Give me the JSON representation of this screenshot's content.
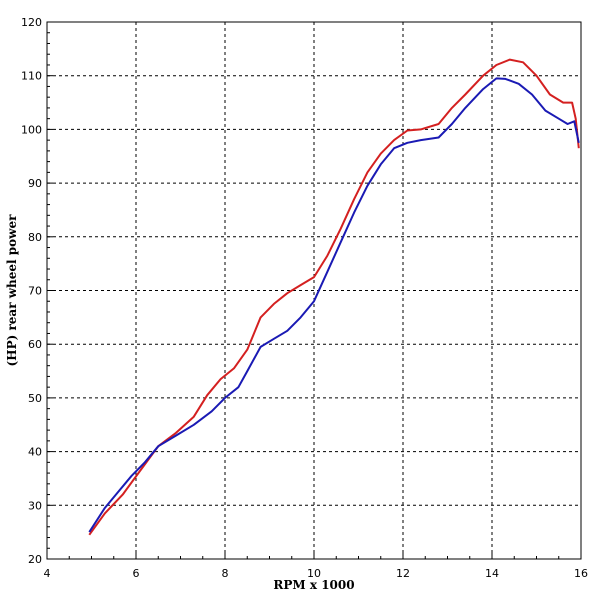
{
  "chart_data": {
    "type": "line",
    "title": "",
    "xlabel": "RPM x 1000",
    "ylabel": "(HP) rear wheel power",
    "xlim": [
      4,
      16
    ],
    "ylim": [
      20,
      120
    ],
    "x_ticks": [
      4,
      6,
      8,
      10,
      12,
      14,
      16
    ],
    "y_ticks": [
      20,
      30,
      40,
      50,
      60,
      70,
      80,
      90,
      100,
      110,
      120
    ],
    "grid": true,
    "legend": "none",
    "series": [
      {
        "color": "#d42020",
        "x": [
          4.95,
          5.3,
          5.7,
          6.1,
          6.5,
          6.9,
          7.3,
          7.6,
          7.9,
          8.2,
          8.5,
          8.8,
          9.1,
          9.4,
          9.7,
          10.0,
          10.3,
          10.6,
          10.9,
          11.2,
          11.5,
          11.8,
          12.1,
          12.4,
          12.8,
          13.1,
          13.4,
          13.8,
          14.1,
          14.4,
          14.7,
          15.0,
          15.3,
          15.6,
          15.8,
          15.88,
          15.95
        ],
        "y": [
          24.5,
          28.5,
          32.0,
          36.5,
          41.0,
          43.5,
          46.5,
          50.5,
          53.5,
          55.5,
          59.0,
          65.0,
          67.5,
          69.5,
          71.0,
          72.5,
          76.5,
          81.5,
          87.0,
          92.0,
          95.5,
          98.0,
          99.8,
          100.0,
          101.0,
          104.0,
          106.5,
          110.0,
          112.0,
          113.0,
          112.5,
          110.0,
          106.5,
          105.0,
          105.0,
          102.0,
          96.5
        ]
      },
      {
        "color": "#1a1ab4",
        "x": [
          4.95,
          5.3,
          5.6,
          5.9,
          6.2,
          6.5,
          6.9,
          7.3,
          7.7,
          8.0,
          8.3,
          8.5,
          8.8,
          9.1,
          9.4,
          9.7,
          10.0,
          10.3,
          10.6,
          10.9,
          11.2,
          11.5,
          11.8,
          12.1,
          12.4,
          12.8,
          13.1,
          13.4,
          13.8,
          14.1,
          14.3,
          14.6,
          14.9,
          15.2,
          15.5,
          15.7,
          15.85,
          15.95
        ],
        "y": [
          25.0,
          29.5,
          32.5,
          35.5,
          38.0,
          41.0,
          43.0,
          45.0,
          47.5,
          50.0,
          52.0,
          55.0,
          59.5,
          61.0,
          62.5,
          65.0,
          68.0,
          73.5,
          79.0,
          84.5,
          89.5,
          93.5,
          96.5,
          97.5,
          98.0,
          98.5,
          101.0,
          104.0,
          107.5,
          109.5,
          109.4,
          108.5,
          106.5,
          103.5,
          102.0,
          101.0,
          101.5,
          97.5
        ]
      }
    ]
  }
}
